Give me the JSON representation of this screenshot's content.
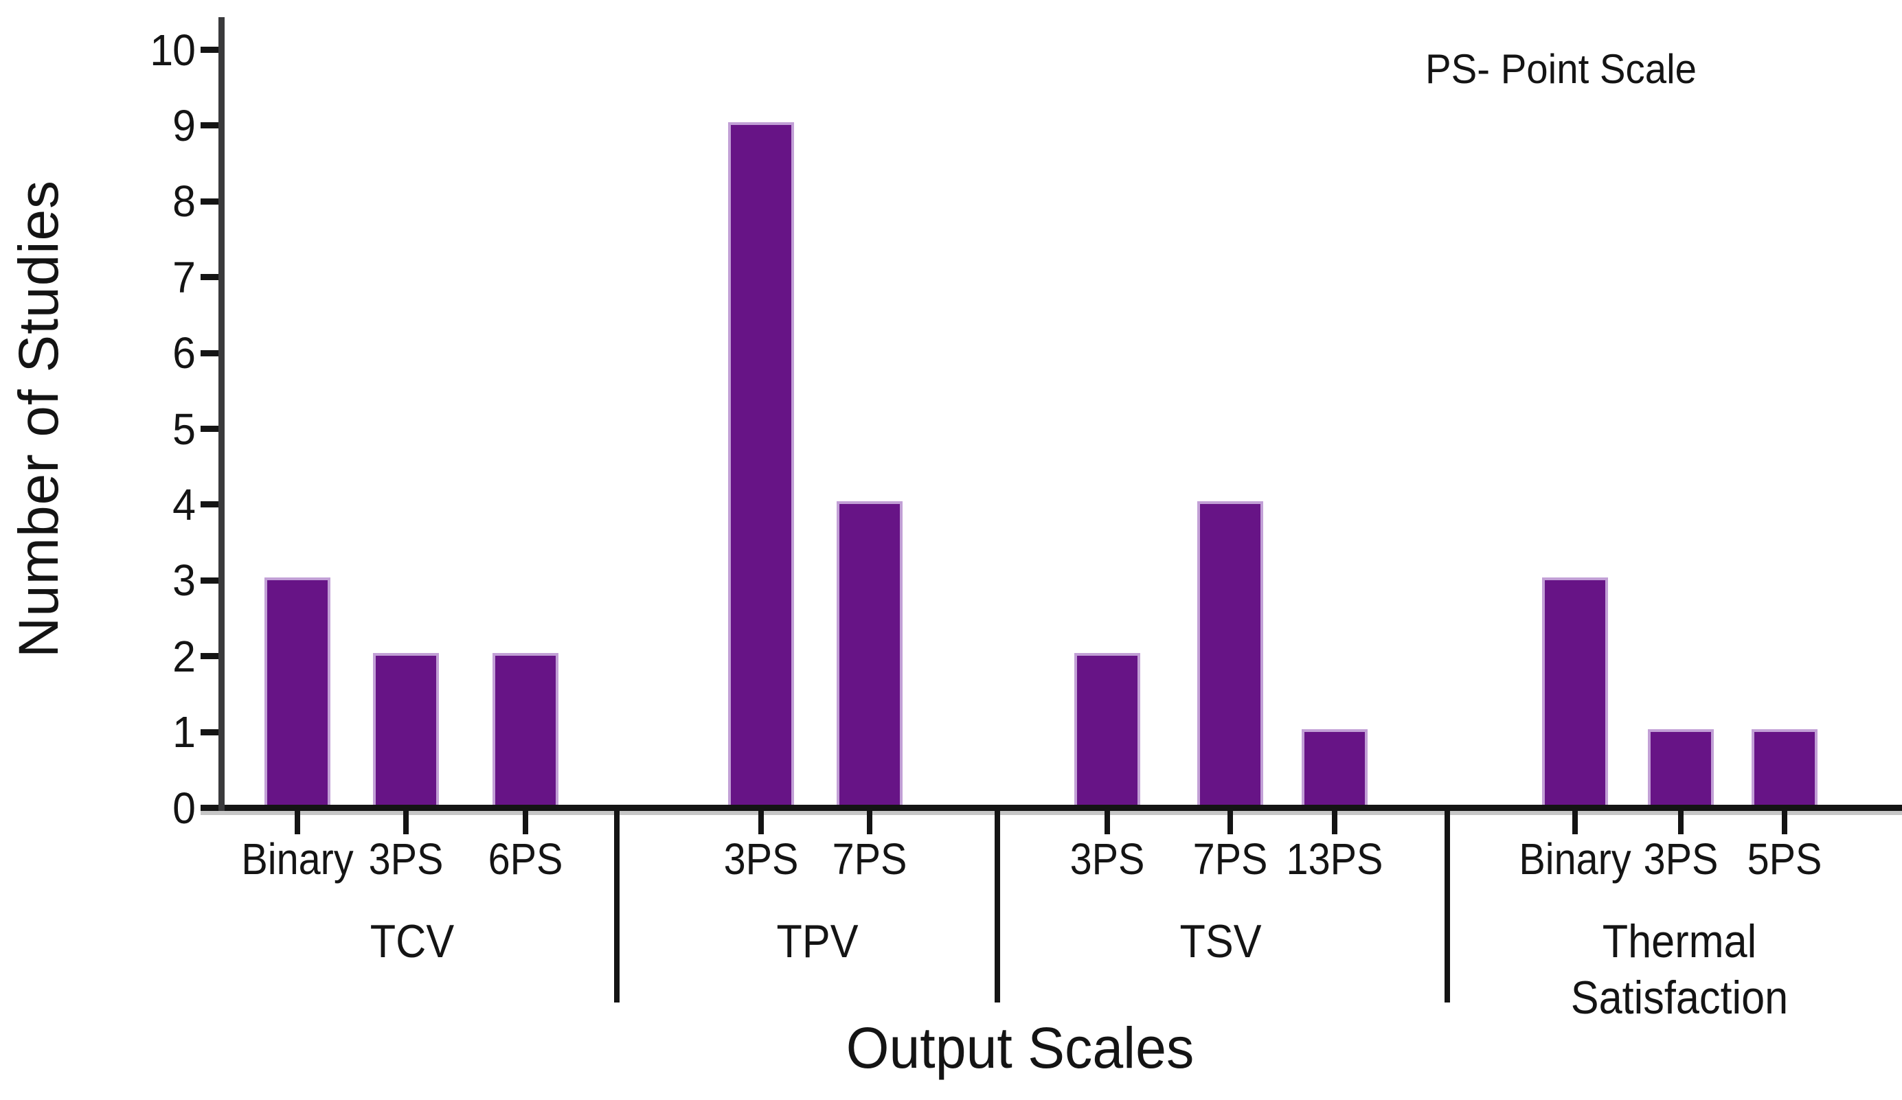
{
  "chart_data": {
    "type": "bar",
    "title": "",
    "ylabel": "Number of Studies",
    "xlabel": "Output Scales",
    "annotation": "PS- Point Scale",
    "ylim": [
      0,
      10
    ],
    "yticks": [
      0,
      1,
      2,
      3,
      4,
      5,
      6,
      7,
      8,
      9,
      10
    ],
    "bar_color": "#671486",
    "grid": false,
    "legend_position": "none",
    "groups": [
      {
        "label": "TCV",
        "bars": [
          {
            "label": "Binary",
            "value": 3
          },
          {
            "label": "3PS",
            "value": 2
          },
          {
            "label": "6PS",
            "value": 2
          }
        ]
      },
      {
        "label": "TPV",
        "bars": [
          {
            "label": "3PS",
            "value": 9
          },
          {
            "label": "7PS",
            "value": 4
          }
        ]
      },
      {
        "label": "TSV",
        "bars": [
          {
            "label": "3PS",
            "value": 2
          },
          {
            "label": "7PS",
            "value": 4
          },
          {
            "label": "13PS",
            "value": 1
          }
        ]
      },
      {
        "label": "Thermal Satisfaction",
        "bars": [
          {
            "label": "Binary",
            "value": 3
          },
          {
            "label": "3PS",
            "value": 1
          },
          {
            "label": "5PS",
            "value": 1
          }
        ]
      }
    ]
  }
}
